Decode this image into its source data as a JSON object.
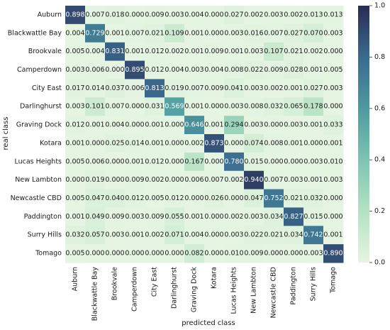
{
  "chart_data": {
    "type": "heatmap",
    "xlabel": "predicted class",
    "ylabel": "real class",
    "categories": [
      "Auburn",
      "Blackwattle Bay",
      "Brookvale",
      "Camperdown",
      "City East",
      "Darlinghurst",
      "Graving Dock",
      "Kotara",
      "Lucas Heights",
      "New Lambton",
      "Newcastle CBD",
      "Paddington",
      "Surry Hills",
      "Tomago"
    ],
    "matrix": [
      [
        "0.898",
        "0.007",
        "0.018",
        "0.000",
        "0.009",
        "0.003",
        "0.004",
        "0.000",
        "0.027",
        "0.002",
        "0.003",
        "0.002",
        "0.013",
        "0.013"
      ],
      [
        "0.004",
        "0.729",
        "0.001",
        "0.007",
        "0.021",
        "0.109",
        "0.001",
        "0.000",
        "0.003",
        "0.016",
        "0.007",
        "0.027",
        "0.070",
        "0.003"
      ],
      [
        "0.005",
        "0.004",
        "0.831",
        "0.001",
        "0.012",
        "0.002",
        "0.001",
        "0.009",
        "0.001",
        "0.003",
        "0.107",
        "0.021",
        "0.002",
        "0.000"
      ],
      [
        "0.003",
        "0.006",
        "0.000",
        "0.895",
        "0.012",
        "0.004",
        "0.003",
        "0.004",
        "0.008",
        "0.022",
        "0.009",
        "0.028",
        "0.001",
        "0.005"
      ],
      [
        "0.017",
        "0.014",
        "0.037",
        "0.006",
        "0.813",
        "0.019",
        "0.007",
        "0.009",
        "0.041",
        "0.003",
        "0.002",
        "0.001",
        "0.027",
        "0.003"
      ],
      [
        "0.003",
        "0.101",
        "0.007",
        "0.000",
        "0.031",
        "0.569",
        "0.001",
        "0.000",
        "0.003",
        "0.008",
        "0.032",
        "0.065",
        "0.178",
        "0.000"
      ],
      [
        "0.012",
        "0.001",
        "0.004",
        "0.000",
        "0.001",
        "0.000",
        "0.646",
        "0.001",
        "0.294",
        "0.003",
        "0.000",
        "0.003",
        "0.001",
        "0.033"
      ],
      [
        "0.001",
        "0.000",
        "0.025",
        "0.014",
        "0.001",
        "0.000",
        "0.002",
        "0.873",
        "0.000",
        "0.074",
        "0.008",
        "0.001",
        "0.000",
        "0.001"
      ],
      [
        "0.005",
        "0.006",
        "0.000",
        "0.001",
        "0.012",
        "0.000",
        "0.167",
        "0.000",
        "0.780",
        "0.015",
        "0.000",
        "0.000",
        "0.003",
        "0.010"
      ],
      [
        "0.000",
        "0.019",
        "0.000",
        "0.009",
        "0.002",
        "0.000",
        "0.006",
        "0.007",
        "0.002",
        "0.940",
        "0.007",
        "0.003",
        "0.001",
        "0.003"
      ],
      [
        "0.005",
        "0.047",
        "0.040",
        "0.012",
        "0.005",
        "0.012",
        "0.000",
        "0.026",
        "0.000",
        "0.047",
        "0.752",
        "0.021",
        "0.032",
        "0.000"
      ],
      [
        "0.001",
        "0.049",
        "0.009",
        "0.003",
        "0.009",
        "0.055",
        "0.001",
        "0.000",
        "0.002",
        "0.003",
        "0.034",
        "0.827",
        "0.015",
        "0.000"
      ],
      [
        "0.032",
        "0.057",
        "0.003",
        "0.001",
        "0.002",
        "0.071",
        "0.004",
        "0.000",
        "0.003",
        "0.022",
        "0.021",
        "0.034",
        "0.742",
        "0.001"
      ],
      [
        "0.005",
        "0.000",
        "0.000",
        "0.000",
        "0.000",
        "0.000",
        "0.082",
        "0.000",
        "0.010",
        "0.009",
        "0.000",
        "0.000",
        "0.003",
        "0.890"
      ]
    ],
    "vmin": 0.0,
    "vmax": 1.0,
    "colorbar_ticks": [
      "0.0",
      "0.2",
      "0.4",
      "0.6",
      "0.8",
      "1.0"
    ],
    "colormap": [
      "#e6f5e3",
      "#2b2b52"
    ],
    "grid": false,
    "legend": "colorbar-right"
  }
}
